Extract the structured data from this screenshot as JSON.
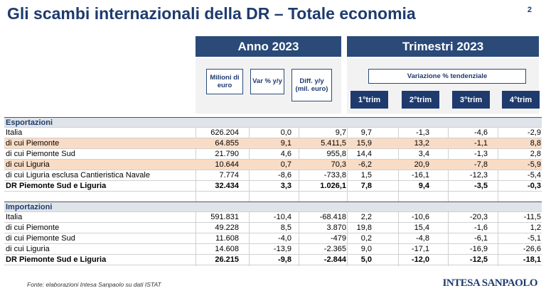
{
  "header": {
    "title": "Gli scambi internazionali della DR – Totale economia",
    "page_number": "2"
  },
  "column_groups": [
    "Anno 2023",
    "Trimestri 2023"
  ],
  "column_headers": {
    "annual": [
      "Milioni di euro",
      "Var % y/y",
      "Diff. y/y (mil. euro)"
    ],
    "quarterly_caption": "Variazione % tendenziale",
    "quarters": [
      "1°trim",
      "2°trim",
      "3°trim",
      "4°trim"
    ]
  },
  "table": {
    "sections": [
      {
        "title": "Esportazioni",
        "rows": [
          {
            "label": "Italia",
            "cells": [
              "626.204",
              "0,0",
              "9,7",
              "9,7",
              "-1,3",
              "-4,6",
              "-2,9"
            ]
          },
          {
            "label": "di cui Piemonte",
            "cells": [
              "64.855",
              "9,1",
              "5.411,5",
              "15,9",
              "13,2",
              "-1,1",
              "8,8"
            ]
          },
          {
            "label": "di cui Piemonte Sud",
            "cells": [
              "21.790",
              "4,6",
              "955,8",
              "14,4",
              "3,4",
              "-1,3",
              "2,8"
            ]
          },
          {
            "label": "di cui Liguria",
            "cells": [
              "10.644",
              "0,7",
              "70,3",
              "-6,2",
              "20,9",
              "-7,8",
              "-5,9"
            ]
          },
          {
            "label": "di cui Liguria esclusa Cantieristica Navale",
            "cells": [
              "7.774",
              "-8,6",
              "-733,8",
              "1,5",
              "-16,1",
              "-12,3",
              "-5,4"
            ]
          },
          {
            "label": "DR Piemonte Sud e Liguria",
            "cells": [
              "32.434",
              "3,3",
              "1.026,1",
              "7,8",
              "9,4",
              "-3,5",
              "-0,3"
            ]
          }
        ]
      },
      {
        "title": "Importazioni",
        "rows": [
          {
            "label": "Italia",
            "cells": [
              "591.831",
              "-10,4",
              "-68.418",
              "2,2",
              "-10,6",
              "-20,3",
              "-11,5"
            ]
          },
          {
            "label": "di cui Piemonte",
            "cells": [
              "49.228",
              "8,5",
              "3.870",
              "19,8",
              "15,4",
              "-1,6",
              "1,2"
            ]
          },
          {
            "label": "di cui Piemonte Sud",
            "cells": [
              "11.608",
              "-4,0",
              "-479",
              "0,2",
              "-4,8",
              "-6,1",
              "-5,1"
            ]
          },
          {
            "label": "di cui Liguria",
            "cells": [
              "14.608",
              "-13,9",
              "-2.365",
              "9,0",
              "-17,1",
              "-16,9",
              "-26,6"
            ]
          },
          {
            "label": "DR Piemonte Sud e Liguria",
            "cells": [
              "26.215",
              "-9,8",
              "-2.844",
              "5,0",
              "-12,0",
              "-12,5",
              "-18,1"
            ]
          }
        ]
      }
    ]
  },
  "footer": {
    "source": "Fonte: elaborazioni Intesa Sanpaolo su dati ISTAT",
    "logo": "INTESA SANPAOLO"
  }
}
